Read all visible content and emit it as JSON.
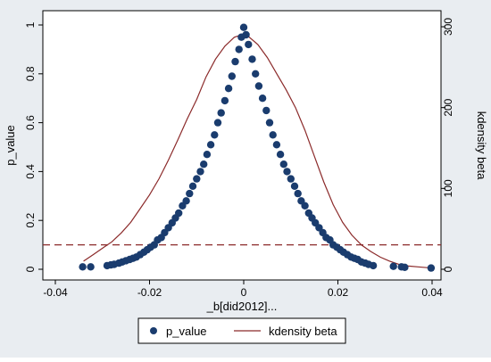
{
  "chart_data": {
    "type": "scatter",
    "xlabel": "_b[did2012]...",
    "ylabel_left": "p_value",
    "ylabel_right": "kdensity beta",
    "xlim": [
      -0.04,
      0.04
    ],
    "ylim_left": [
      0,
      1
    ],
    "ylim_right": [
      0,
      300
    ],
    "x_ticks": [
      -0.04,
      -0.02,
      0,
      0.02,
      0.04
    ],
    "x_tick_labels": [
      "-0.04",
      "-0.02",
      "0",
      "0.02",
      "0.04"
    ],
    "y_left_ticks": [
      0,
      0.2,
      0.4,
      0.6,
      0.8,
      1
    ],
    "y_left_tick_labels": [
      "0",
      "0.2",
      "0.4",
      "0.6",
      "0.8",
      "1"
    ],
    "y_right_ticks": [
      0,
      100,
      200,
      300
    ],
    "y_right_tick_labels": [
      "0",
      "100",
      "200",
      "300"
    ],
    "reference_line": {
      "axis": "left",
      "value": 0.1,
      "style": "dashed"
    },
    "grid": false,
    "legend_position": "bottom",
    "series": [
      {
        "name": "p_value",
        "kind": "scatter",
        "axis": "left",
        "color": "#1a3c6e",
        "points": [
          [
            -0.0342,
            0.01
          ],
          [
            -0.0325,
            0.01
          ],
          [
            -0.029,
            0.015
          ],
          [
            -0.0282,
            0.018
          ],
          [
            -0.0275,
            0.02
          ],
          [
            -0.0265,
            0.025
          ],
          [
            -0.0258,
            0.03
          ],
          [
            -0.025,
            0.035
          ],
          [
            -0.0242,
            0.04
          ],
          [
            -0.0235,
            0.045
          ],
          [
            -0.0228,
            0.05
          ],
          [
            -0.022,
            0.06
          ],
          [
            -0.0212,
            0.07
          ],
          [
            -0.0205,
            0.08
          ],
          [
            -0.0198,
            0.09
          ],
          [
            -0.019,
            0.1
          ],
          [
            -0.0183,
            0.12
          ],
          [
            -0.0175,
            0.13
          ],
          [
            -0.0168,
            0.15
          ],
          [
            -0.016,
            0.17
          ],
          [
            -0.0152,
            0.19
          ],
          [
            -0.0145,
            0.21
          ],
          [
            -0.0138,
            0.23
          ],
          [
            -0.013,
            0.26
          ],
          [
            -0.0122,
            0.28
          ],
          [
            -0.0115,
            0.31
          ],
          [
            -0.0108,
            0.34
          ],
          [
            -0.01,
            0.37
          ],
          [
            -0.0092,
            0.4
          ],
          [
            -0.0085,
            0.43
          ],
          [
            -0.0078,
            0.47
          ],
          [
            -0.007,
            0.51
          ],
          [
            -0.0062,
            0.55
          ],
          [
            -0.0055,
            0.6
          ],
          [
            -0.0048,
            0.64
          ],
          [
            -0.004,
            0.69
          ],
          [
            -0.0032,
            0.74
          ],
          [
            -0.0025,
            0.79
          ],
          [
            -0.0018,
            0.85
          ],
          [
            -0.001,
            0.9
          ],
          [
            -0.0005,
            0.95
          ],
          [
            0.0,
            0.99
          ],
          [
            0.0005,
            0.96
          ],
          [
            0.001,
            0.92
          ],
          [
            0.0018,
            0.86
          ],
          [
            0.0025,
            0.8
          ],
          [
            0.0032,
            0.75
          ],
          [
            0.004,
            0.7
          ],
          [
            0.0048,
            0.65
          ],
          [
            0.0055,
            0.6
          ],
          [
            0.0062,
            0.55
          ],
          [
            0.007,
            0.51
          ],
          [
            0.0078,
            0.47
          ],
          [
            0.0085,
            0.43
          ],
          [
            0.0092,
            0.4
          ],
          [
            0.01,
            0.37
          ],
          [
            0.0108,
            0.34
          ],
          [
            0.0115,
            0.31
          ],
          [
            0.0122,
            0.28
          ],
          [
            0.013,
            0.26
          ],
          [
            0.0138,
            0.23
          ],
          [
            0.0145,
            0.21
          ],
          [
            0.0152,
            0.19
          ],
          [
            0.016,
            0.17
          ],
          [
            0.0168,
            0.15
          ],
          [
            0.0175,
            0.13
          ],
          [
            0.0183,
            0.12
          ],
          [
            0.019,
            0.1
          ],
          [
            0.0198,
            0.09
          ],
          [
            0.0205,
            0.08
          ],
          [
            0.0212,
            0.07
          ],
          [
            0.022,
            0.06
          ],
          [
            0.0228,
            0.05
          ],
          [
            0.0235,
            0.045
          ],
          [
            0.0242,
            0.04
          ],
          [
            0.025,
            0.03
          ],
          [
            0.0258,
            0.025
          ],
          [
            0.0265,
            0.02
          ],
          [
            0.0275,
            0.015
          ],
          [
            0.0318,
            0.012
          ],
          [
            0.0335,
            0.01
          ],
          [
            0.0342,
            0.008
          ],
          [
            0.0398,
            0.005
          ]
        ]
      },
      {
        "name": "kdensity beta",
        "kind": "line",
        "axis": "right",
        "color": "#8b2a2a",
        "points": [
          [
            -0.034,
            10
          ],
          [
            -0.032,
            18
          ],
          [
            -0.03,
            26
          ],
          [
            -0.028,
            34
          ],
          [
            -0.026,
            45
          ],
          [
            -0.024,
            58
          ],
          [
            -0.022,
            75
          ],
          [
            -0.02,
            92
          ],
          [
            -0.018,
            112
          ],
          [
            -0.016,
            135
          ],
          [
            -0.014,
            160
          ],
          [
            -0.012,
            186
          ],
          [
            -0.01,
            210
          ],
          [
            -0.008,
            238
          ],
          [
            -0.006,
            260
          ],
          [
            -0.004,
            276
          ],
          [
            -0.002,
            287
          ],
          [
            -0.0005,
            290
          ],
          [
            0.0,
            290
          ],
          [
            0.001,
            288
          ],
          [
            0.003,
            278
          ],
          [
            0.005,
            262
          ],
          [
            0.007,
            242
          ],
          [
            0.009,
            222
          ],
          [
            0.011,
            200
          ],
          [
            0.013,
            172
          ],
          [
            0.015,
            140
          ],
          [
            0.017,
            108
          ],
          [
            0.019,
            80
          ],
          [
            0.021,
            58
          ],
          [
            0.023,
            42
          ],
          [
            0.025,
            30
          ],
          [
            0.027,
            22
          ],
          [
            0.029,
            15
          ],
          [
            0.031,
            10
          ],
          [
            0.033,
            6
          ],
          [
            0.035,
            4
          ],
          [
            0.037,
            3
          ],
          [
            0.039,
            2
          ],
          [
            0.04,
            1
          ]
        ]
      }
    ]
  }
}
